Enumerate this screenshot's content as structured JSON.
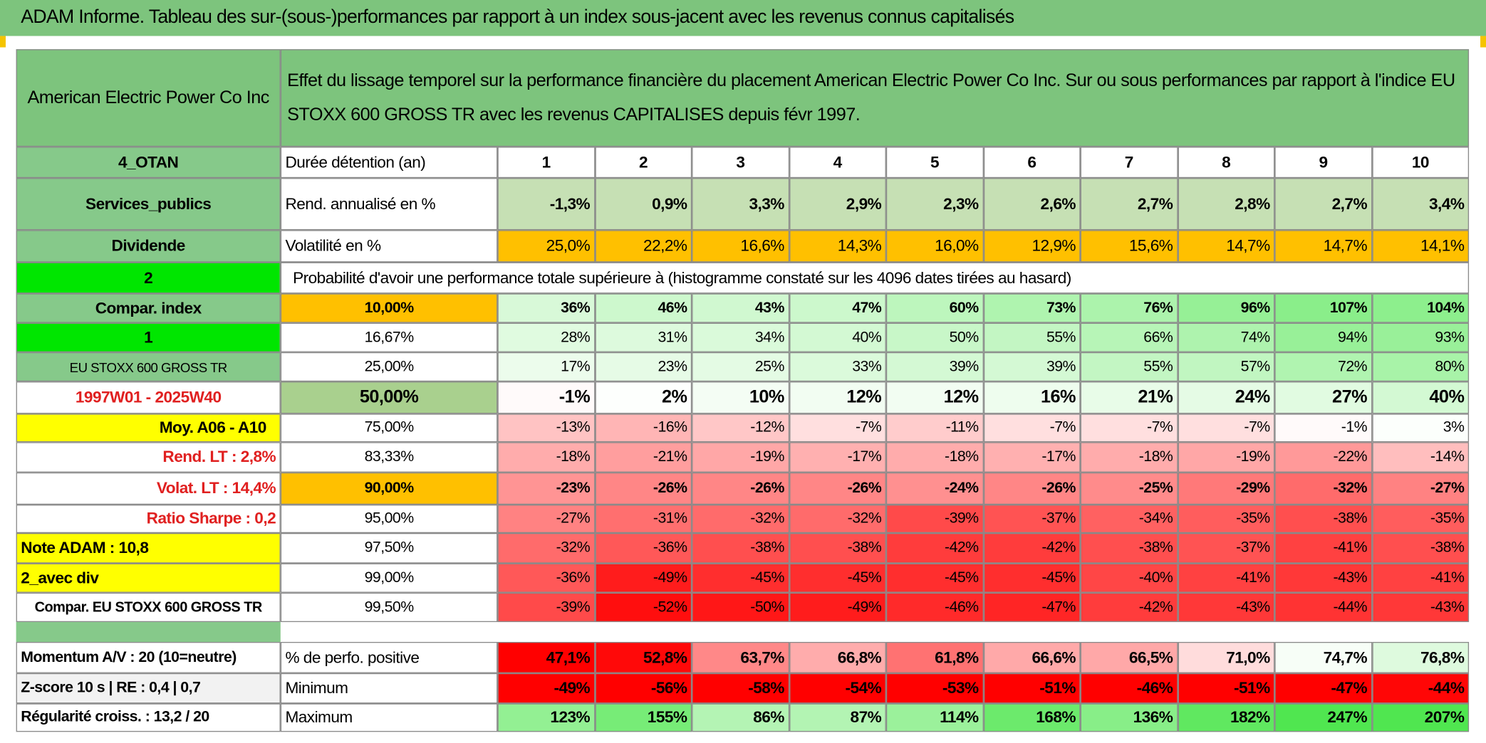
{
  "title": "ADAM Informe. Tableau des sur-(sous-)performances par rapport à un index sous-jacent avec les revenus connus capitalisés",
  "header": {
    "name": "American Electric Power Co Inc",
    "description": "Effet du lissage temporel sur la performance financière du placement American Electric Power Co Inc. Sur ou sous performances par rapport à l'indice EU STOXX 600 GROSS TR avec les revenus CAPITALISES depuis févr 1997."
  },
  "left_labels": [
    "4_OTAN",
    "Services_publics",
    "Dividende",
    "2",
    "Compar. index",
    "1",
    "EU STOXX 600 GROSS TR",
    "1997W01 - 2025W40",
    "Moy. A06 - A10",
    "Rend. LT :   2,8%",
    "Volat. LT :   14,4%",
    "Ratio Sharpe :   0,2",
    "Note ADAM : 10,8",
    "2_avec div",
    "Compar. EU STOXX 600 GROSS TR"
  ],
  "holding": {
    "label": "Durée détention (an)",
    "years": [
      "1",
      "2",
      "3",
      "4",
      "5",
      "6",
      "7",
      "8",
      "9",
      "10"
    ]
  },
  "stats": [
    {
      "label": "Rend. annualisé en %",
      "values": [
        "-1,3%",
        "0,9%",
        "3,3%",
        "2,9%",
        "2,3%",
        "2,6%",
        "2,7%",
        "2,8%",
        "2,7%",
        "3,4%"
      ]
    },
    {
      "label": "Volatilité en %",
      "values": [
        "25,0%",
        "22,2%",
        "16,6%",
        "14,3%",
        "16,0%",
        "12,9%",
        "15,6%",
        "14,7%",
        "14,7%",
        "14,1%"
      ]
    }
  ],
  "probability_title": "Probabilité d'avoir une performance totale supérieure à (histogramme constaté sur les 4096 dates tirées au hasard)",
  "quantiles": [
    {
      "level": "10,00%",
      "values": [
        "36%",
        "46%",
        "43%",
        "47%",
        "60%",
        "73%",
        "76%",
        "96%",
        "107%",
        "104%"
      ]
    },
    {
      "level": "16,67%",
      "values": [
        "28%",
        "31%",
        "34%",
        "40%",
        "50%",
        "55%",
        "66%",
        "74%",
        "94%",
        "93%"
      ]
    },
    {
      "level": "25,00%",
      "values": [
        "17%",
        "23%",
        "25%",
        "33%",
        "39%",
        "39%",
        "55%",
        "57%",
        "72%",
        "80%"
      ]
    },
    {
      "level": "50,00%",
      "values": [
        "-1%",
        "2%",
        "10%",
        "12%",
        "12%",
        "16%",
        "21%",
        "24%",
        "27%",
        "40%"
      ]
    },
    {
      "level": "75,00%",
      "values": [
        "-13%",
        "-16%",
        "-12%",
        "-7%",
        "-11%",
        "-7%",
        "-7%",
        "-7%",
        "-1%",
        "3%"
      ]
    },
    {
      "level": "83,33%",
      "values": [
        "-18%",
        "-21%",
        "-19%",
        "-17%",
        "-18%",
        "-17%",
        "-18%",
        "-19%",
        "-22%",
        "-14%"
      ]
    },
    {
      "level": "90,00%",
      "values": [
        "-23%",
        "-26%",
        "-26%",
        "-26%",
        "-24%",
        "-26%",
        "-25%",
        "-29%",
        "-32%",
        "-27%"
      ]
    },
    {
      "level": "95,00%",
      "values": [
        "-27%",
        "-31%",
        "-32%",
        "-32%",
        "-39%",
        "-37%",
        "-34%",
        "-35%",
        "-38%",
        "-35%"
      ]
    },
    {
      "level": "97,50%",
      "values": [
        "-32%",
        "-36%",
        "-38%",
        "-38%",
        "-42%",
        "-42%",
        "-38%",
        "-37%",
        "-41%",
        "-38%"
      ]
    },
    {
      "level": "99,00%",
      "values": [
        "-36%",
        "-49%",
        "-45%",
        "-45%",
        "-45%",
        "-45%",
        "-40%",
        "-41%",
        "-43%",
        "-41%"
      ]
    },
    {
      "level": "99,50%",
      "values": [
        "-39%",
        "-52%",
        "-50%",
        "-49%",
        "-46%",
        "-47%",
        "-42%",
        "-43%",
        "-44%",
        "-43%"
      ]
    }
  ],
  "bottom": [
    {
      "name": "Momentum A/V : 20 (10=neutre)",
      "label": "% de perfo. positive",
      "values": [
        "47,1%",
        "52,8%",
        "63,7%",
        "66,8%",
        "61,8%",
        "66,6%",
        "66,5%",
        "71,0%",
        "74,7%",
        "76,8%"
      ]
    },
    {
      "name": "Z-score 10 s | RE : 0,4 | 0,7",
      "label": "Minimum",
      "values": [
        "-49%",
        "-56%",
        "-58%",
        "-54%",
        "-53%",
        "-51%",
        "-46%",
        "-51%",
        "-47%",
        "-44%"
      ]
    },
    {
      "name": "Régularité croiss. : 13,2 / 20",
      "label": "Maximum",
      "values": [
        "123%",
        "155%",
        "86%",
        "87%",
        "114%",
        "168%",
        "136%",
        "182%",
        "247%",
        "207%"
      ]
    }
  ]
}
